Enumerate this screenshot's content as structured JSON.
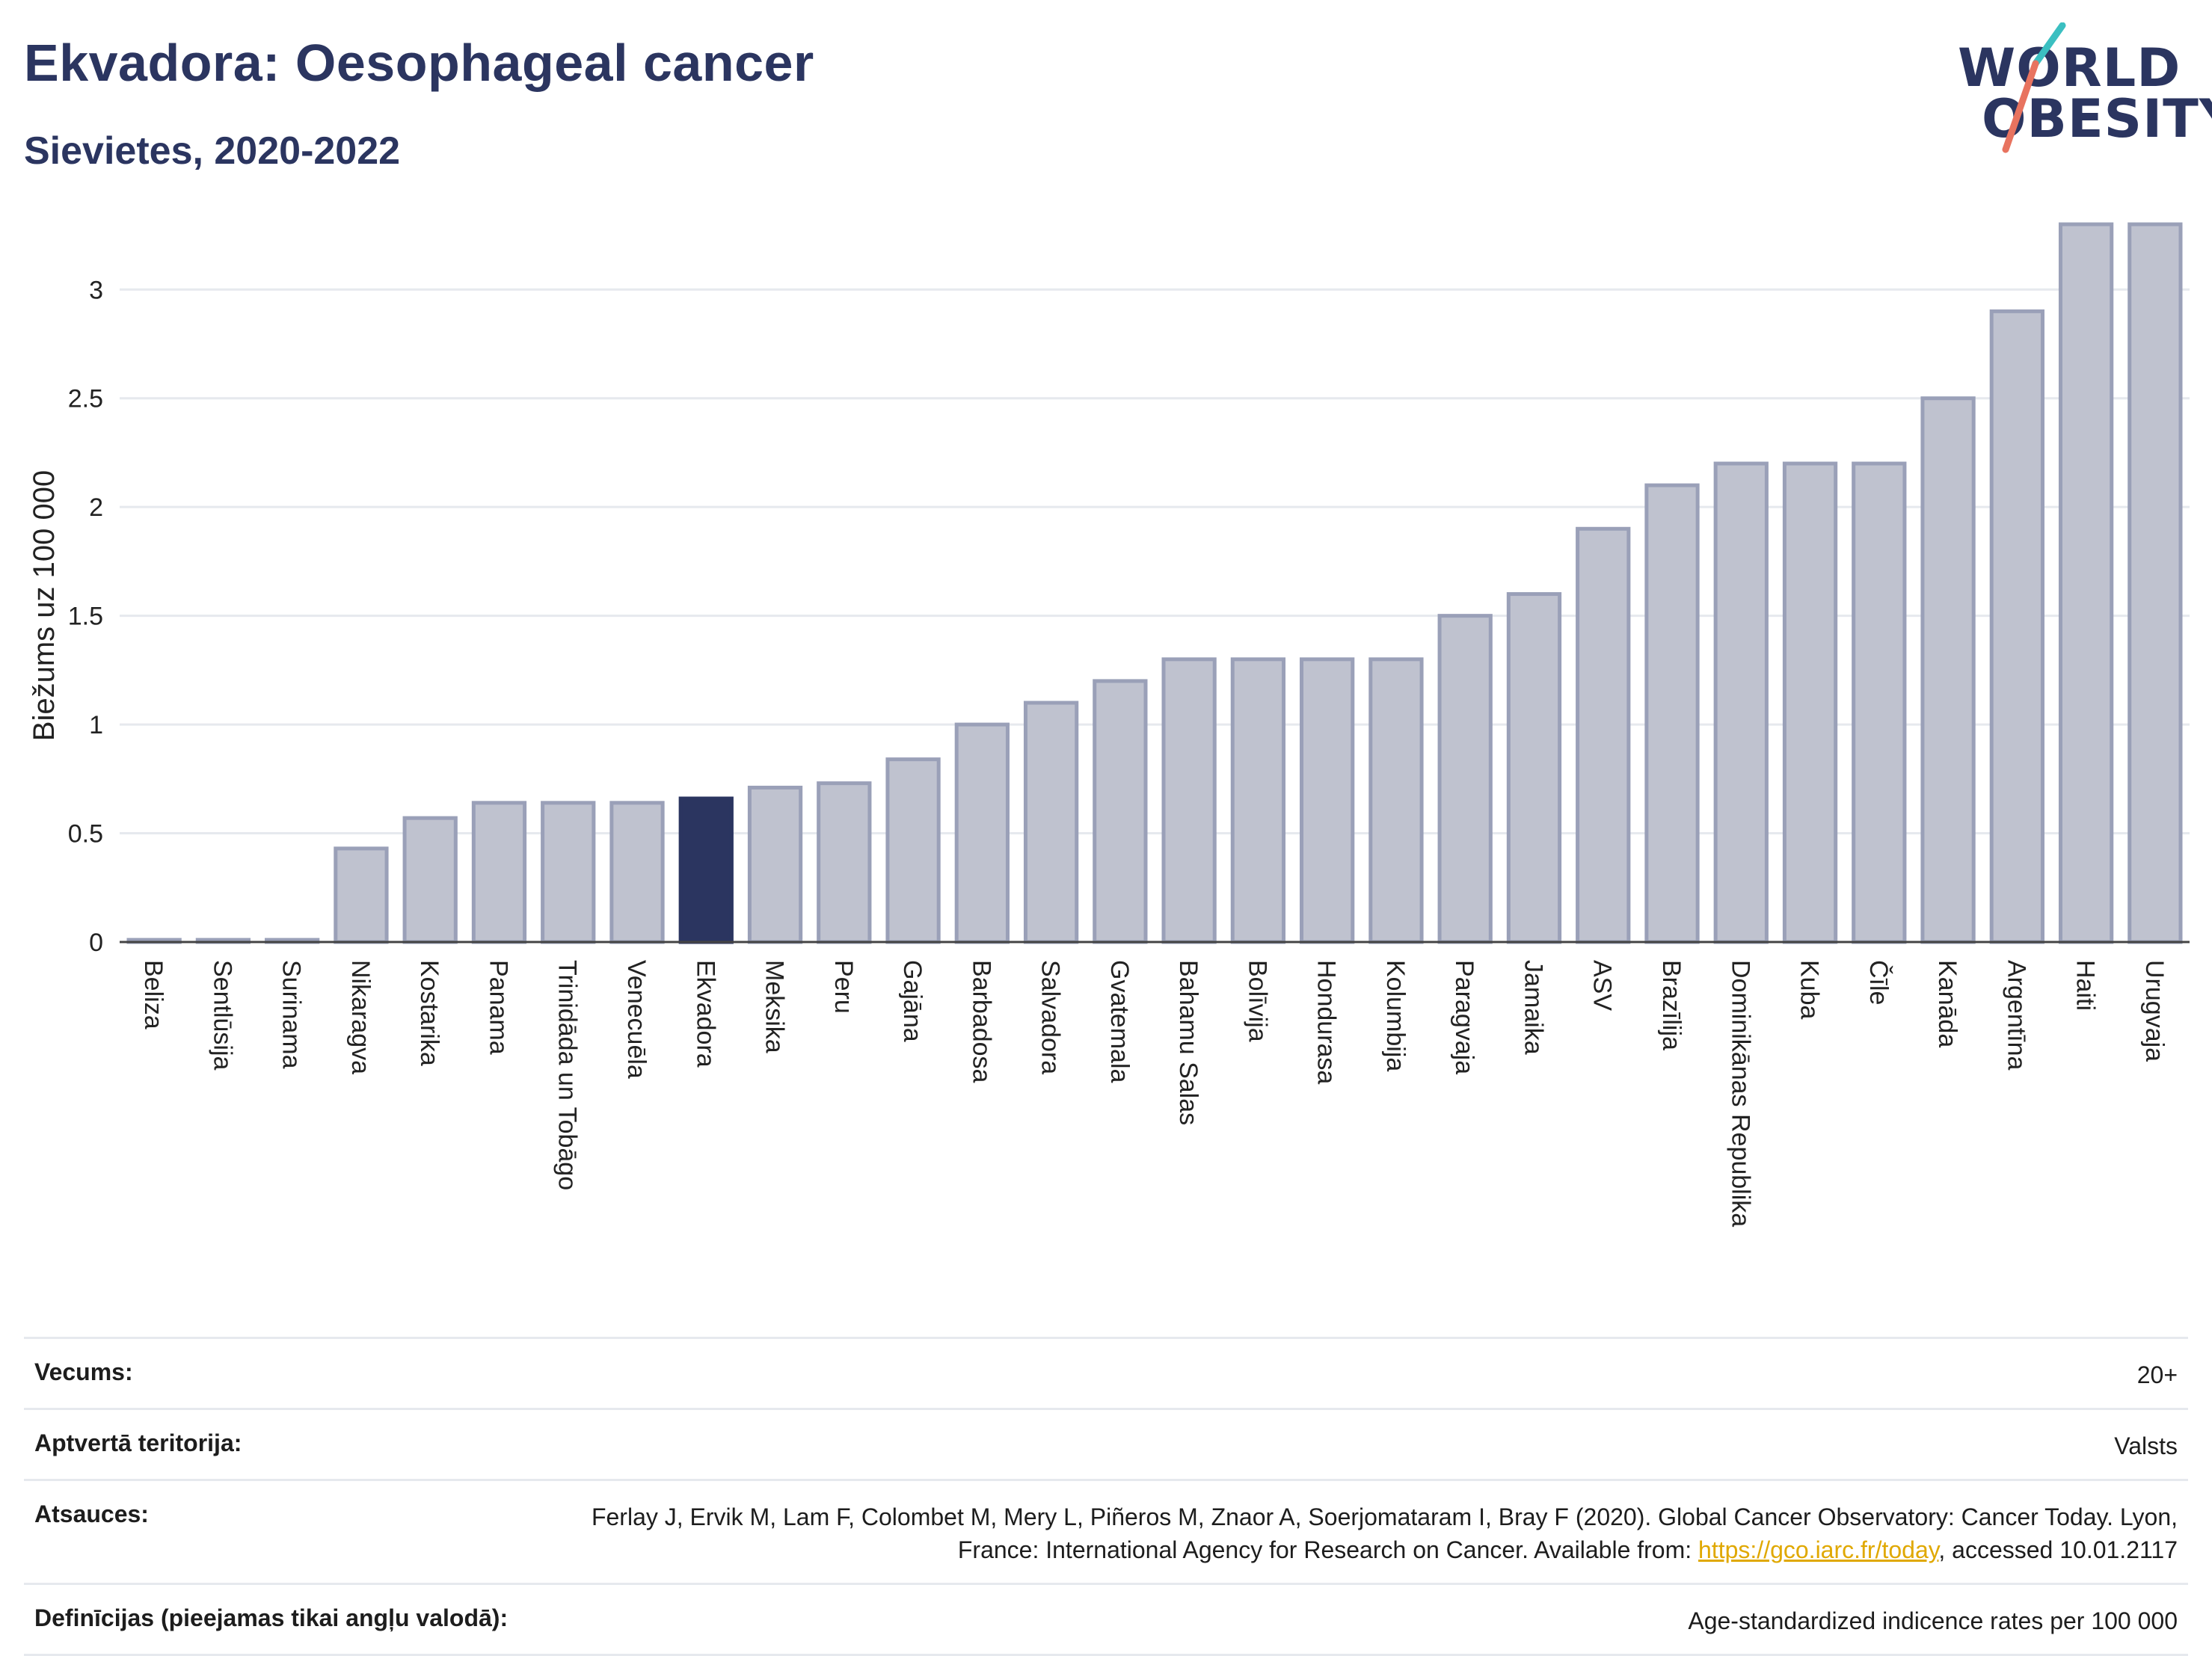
{
  "header": {
    "title": "Ekvadora: Oesophageal cancer",
    "subtitle": "Sievietes, 2020-2022"
  },
  "logo": {
    "line1": "WORLD",
    "line2": "OBESITY",
    "slash_colors": [
      "#3bbfc1",
      "#e8735f"
    ]
  },
  "colors": {
    "bar_fill": "#bfc2cf",
    "bar_border": "#9aa0b8",
    "highlight": "#2b3560",
    "grid": "#e6e9ee"
  },
  "chart_data": {
    "type": "bar",
    "categories": [
      "Beliza",
      "Sentlūsija",
      "Surinama",
      "Nikaragva",
      "Kostarika",
      "Panama",
      "Trinidāda un Tobāgo",
      "Venecuēla",
      "Ekvadora",
      "Meksika",
      "Peru",
      "Gajāna",
      "Barbadosa",
      "Salvadora",
      "Gvatemala",
      "Bahamu Salas",
      "Bolīvija",
      "Hondurasa",
      "Kolumbija",
      "Paragvaja",
      "Jamaika",
      "ASV",
      "Brazīlija",
      "Dominikānas Republika",
      "Kuba",
      "Čīle",
      "Kanāda",
      "Argentīna",
      "Haiti",
      "Urugvaja"
    ],
    "values": [
      0.01,
      0.01,
      0.01,
      0.43,
      0.57,
      0.64,
      0.64,
      0.64,
      0.66,
      0.71,
      0.73,
      0.84,
      1.0,
      1.1,
      1.2,
      1.3,
      1.3,
      1.3,
      1.3,
      1.5,
      1.6,
      1.9,
      2.1,
      2.2,
      2.2,
      2.2,
      2.5,
      2.9,
      3.3,
      3.3
    ],
    "highlight": "Ekvadora",
    "ylabel": "Biežums uz 100 000",
    "xlabel": "",
    "ylim": [
      0,
      3.3
    ],
    "yticks": [
      "0",
      "0.5",
      "1",
      "1.5",
      "2",
      "2.5",
      "3"
    ],
    "grid": true
  },
  "info": [
    {
      "label": "Vecums:",
      "value": "20+"
    },
    {
      "label": "Aptvertā teritorija:",
      "value": "Valsts"
    },
    {
      "label": "Atsauces:",
      "value_before": "Ferlay J, Ervik M, Lam F, Colombet M, Mery L, Piñeros M, Znaor A, Soerjomataram I, Bray F (2020). Global Cancer Observatory: Cancer Today. Lyon, France: International Agency for Research on Cancer. Available from: ",
      "link": "https://gco.iarc.fr/today",
      "value_after": ", accessed 10.01.2117"
    },
    {
      "label": "Definīcijas (pieejamas tikai angļu valodā):",
      "value": "Age-standardized indicence rates per 100 000"
    }
  ]
}
